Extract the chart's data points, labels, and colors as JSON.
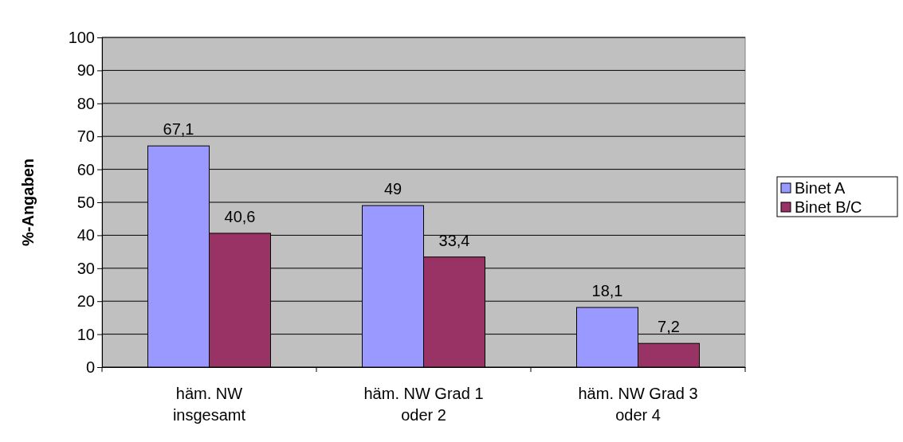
{
  "chart_data": {
    "type": "bar",
    "ylabel": "%-Angaben",
    "categories": [
      "häm. NW insgesamt",
      "häm. NW Grad 1 oder 2",
      "häm. NW Grad 3 oder 4"
    ],
    "series": [
      {
        "name": "Binet A",
        "color": "#9999ff",
        "values": [
          67.1,
          49,
          18.1
        ],
        "value_labels": [
          "67,1",
          "49",
          "18,1"
        ]
      },
      {
        "name": "Binet B/C",
        "color": "#993366",
        "values": [
          40.6,
          33.4,
          7.2
        ],
        "value_labels": [
          "40,6",
          "33,4",
          "7,2"
        ]
      }
    ],
    "ylim": [
      0,
      100
    ],
    "yticks": [
      0,
      10,
      20,
      30,
      40,
      50,
      60,
      70,
      80,
      90,
      100
    ],
    "grid": "y",
    "legend": "right"
  }
}
